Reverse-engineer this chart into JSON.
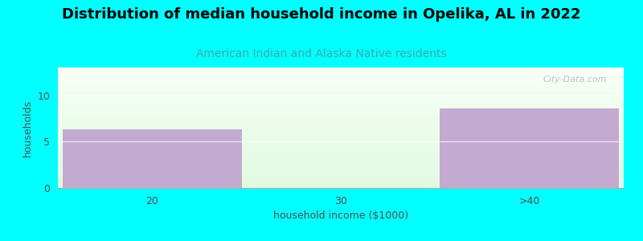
{
  "title": "Distribution of median household income in Opelika, AL in 2022",
  "subtitle": "American Indian and Alaska Native residents",
  "categories": [
    "20",
    "30",
    ">40"
  ],
  "values": [
    6.3,
    0,
    8.6
  ],
  "bar_color": "#c4aad0",
  "background_color": "#00ffff",
  "xlabel": "household income ($1000)",
  "ylabel": "households",
  "ylim": [
    0,
    13
  ],
  "yticks": [
    0,
    5,
    10
  ],
  "title_fontsize": 13,
  "subtitle_fontsize": 10,
  "subtitle_color": "#3aacac",
  "axis_label_color": "#505050",
  "axis_label_fontsize": 9,
  "tick_label_fontsize": 9,
  "watermark": "City-Data.com",
  "bar_width": 0.95
}
